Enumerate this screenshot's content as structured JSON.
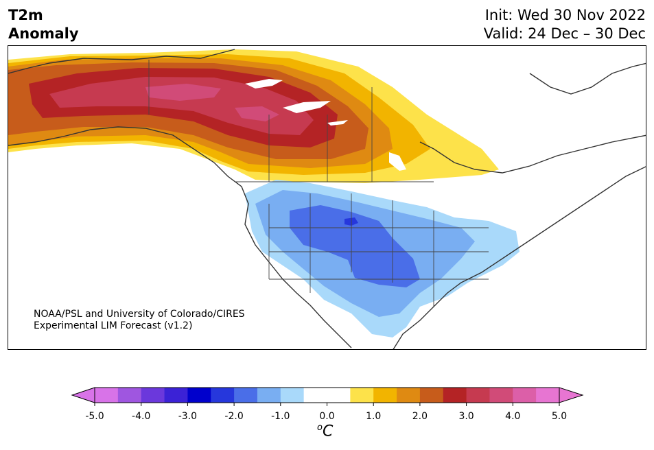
{
  "title": {
    "variable": "T2m",
    "subtitle": "Anomaly",
    "init": "Init: Wed 30 Nov 2022",
    "valid": "Valid: 24 Dec – 30 Dec"
  },
  "credit": {
    "line1": "NOAA/PSL and University of Colorado/CIRES",
    "line2": "Experimental LIM Forecast (v1.2)"
  },
  "colorbar": {
    "unit_super": "o",
    "unit_main": "C",
    "ticks": [
      "-5.0",
      "-4.0",
      "-3.0",
      "-2.0",
      "-1.0",
      "0.0",
      "1.0",
      "2.0",
      "3.0",
      "4.0",
      "5.0"
    ],
    "colors": [
      "#d873e8",
      "#9f56e0",
      "#6b38dc",
      "#3b22d6",
      "#0000cc",
      "#2637dc",
      "#4a6ee8",
      "#79aef2",
      "#a9d9fa",
      "#ffffff",
      "#ffffff",
      "#fde24a",
      "#f2b400",
      "#df8a12",
      "#c75c1b",
      "#b42325",
      "#c63a50",
      "#d14b78",
      "#dc5fa8",
      "#e775d2"
    ],
    "extend_low": "#d873e8",
    "extend_high": "#e775d2"
  },
  "map": {
    "region": "North America",
    "colors": {
      "coast": "#333333",
      "warm_1": "#fde24a",
      "warm_2": "#f2b400",
      "warm_3": "#df8a12",
      "warm_4": "#c75c1b",
      "warm_5": "#b42325",
      "warm_6": "#c63a50",
      "warm_7": "#d14b78",
      "cold_1": "#a9d9fa",
      "cold_2": "#79aef2",
      "cold_3": "#4a6ee8",
      "cold_4": "#2637dc"
    }
  }
}
